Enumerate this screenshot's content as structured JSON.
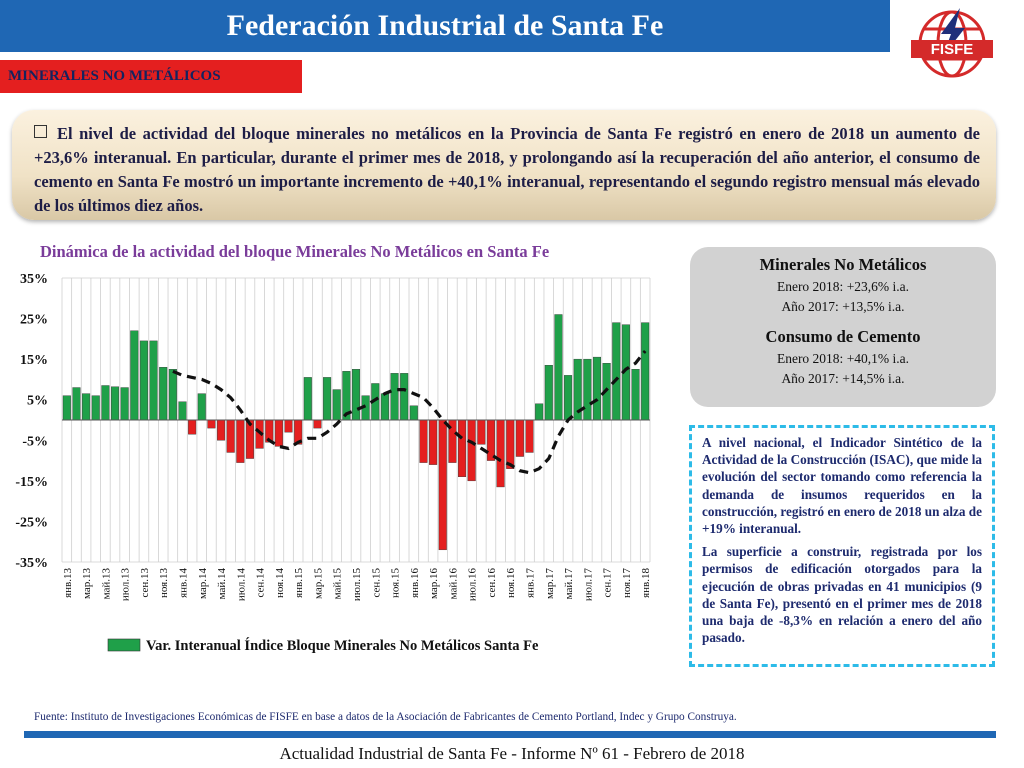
{
  "header": {
    "title": "Federación Industrial de Santa Fe"
  },
  "logo": {
    "text": "FISFE",
    "color": "#d42a2a"
  },
  "section_tag": "MINERALES NO METÁLICOS",
  "summary": "El nivel de actividad del bloque minerales no metálicos en la Provincia de Santa Fe registró en enero de 2018 un aumento de +23,6% interanual. En particular, durante el primer mes de 2018, y prolongando así la recuperación del año anterior, el consumo de cemento en Santa Fe mostró un importante incremento de +40,1% interanual, representando el segundo registro mensual más elevado de los últimos diez años.",
  "chart_title": "Dinámica de la actividad del bloque Minerales No Metálicos en Santa Fe",
  "side_box": {
    "heading1": "Minerales No Metálicos",
    "line1": "Enero 2018: +23,6% i.a.",
    "line2": "Año 2017: +13,5% i.a.",
    "heading2": "Consumo de Cemento",
    "line3": "Enero 2018: +40,1% i.a.",
    "line4": "Año 2017: +14,5% i.a."
  },
  "note": {
    "p1": "A nivel nacional, el Indicador Sintético de la Actividad de la Construcción (ISAC), que mide la evolución del sector tomando como referencia la demanda de insumos requeridos en la construcción, registró en enero de 2018 un alza de +19% interanual.",
    "p2": "La superficie a construir, registrada por los permisos de edificación otorgados para la ejecución de obras privadas en 41 municipios (9 de Santa Fe), presentó en el primer mes de 2018 una baja de -8,3% en relación a enero del año pasado."
  },
  "source": "Fuente: Instituto de Investigaciones Económicas de FISFE en base a datos de la Asociación de Fabricantes de Cemento Portland, Indec y Grupo Construya.",
  "footer": "Actualidad Industrial de Santa Fe - Informe Nº 61 - Febrero de 2018",
  "chart_data": {
    "type": "bar",
    "series": [
      {
        "name": "Var. Interanual Índice Bloque Minerales No Metálicos Santa Fe",
        "color": "#1fa049",
        "negative_color": "#e41f1f",
        "values": [
          6,
          8,
          6.5,
          6,
          8.5,
          8.2,
          8,
          22,
          19.5,
          19.5,
          13,
          12.5,
          4.5,
          -3.5,
          6.5,
          -2,
          -5,
          -8,
          -10.5,
          -9.5,
          -7,
          -5.5,
          -6.5,
          -3,
          -6,
          10.5,
          -2,
          10.5,
          7.5,
          12,
          12.5,
          6,
          9,
          6.5,
          11.5,
          11.5,
          3.5,
          -10.5,
          -11,
          -32,
          -10.5,
          -14,
          -15,
          -6,
          -10,
          -16.5,
          -12,
          -9,
          -8,
          4,
          13.5,
          26,
          11,
          15,
          15,
          15.5,
          14,
          24,
          23.5,
          12.5,
          24
        ]
      }
    ],
    "trend_values": [
      null,
      null,
      null,
      null,
      null,
      null,
      null,
      null,
      null,
      null,
      null,
      12,
      11,
      10.5,
      10,
      9,
      7.5,
      5.5,
      2.5,
      -1,
      -3,
      -5,
      -6.5,
      -7,
      -5.5,
      -4.5,
      -4.5,
      -3,
      -1,
      1.5,
      2.5,
      3.5,
      5,
      6.5,
      7.5,
      7.5,
      6.5,
      5.5,
      3,
      0,
      -2.5,
      -4.5,
      -5.5,
      -7,
      -8.5,
      -10,
      -11,
      -12.5,
      -13,
      -12,
      -9.5,
      -4,
      0,
      2,
      3.5,
      5,
      7.5,
      10,
      12.5,
      14,
      17
    ],
    "trend_color": "#111111",
    "x_labels": [
      "янв.13",
      "мар.13",
      "май.13",
      "июл.13",
      "сен.13",
      "ноя.13",
      "янв.14",
      "мар.14",
      "май.14",
      "июл.14",
      "сен.14",
      "ноя.14",
      "янв.15",
      "мар.15",
      "май.15",
      "июл.15",
      "сен.15",
      "ноя.15",
      "янв.16",
      "мар.16",
      "май.16",
      "июл.16",
      "сен.16",
      "ноя.16",
      "янв.17",
      "мар.17",
      "май.17",
      "июл.17",
      "сен.17",
      "ноя.17",
      "янв.18"
    ],
    "y_ticks": [
      "35%",
      "25%",
      "15%",
      "5%",
      "-5%",
      "-15%",
      "-25%",
      "-35%"
    ],
    "ylim": [
      -35,
      35
    ],
    "grid": true
  }
}
